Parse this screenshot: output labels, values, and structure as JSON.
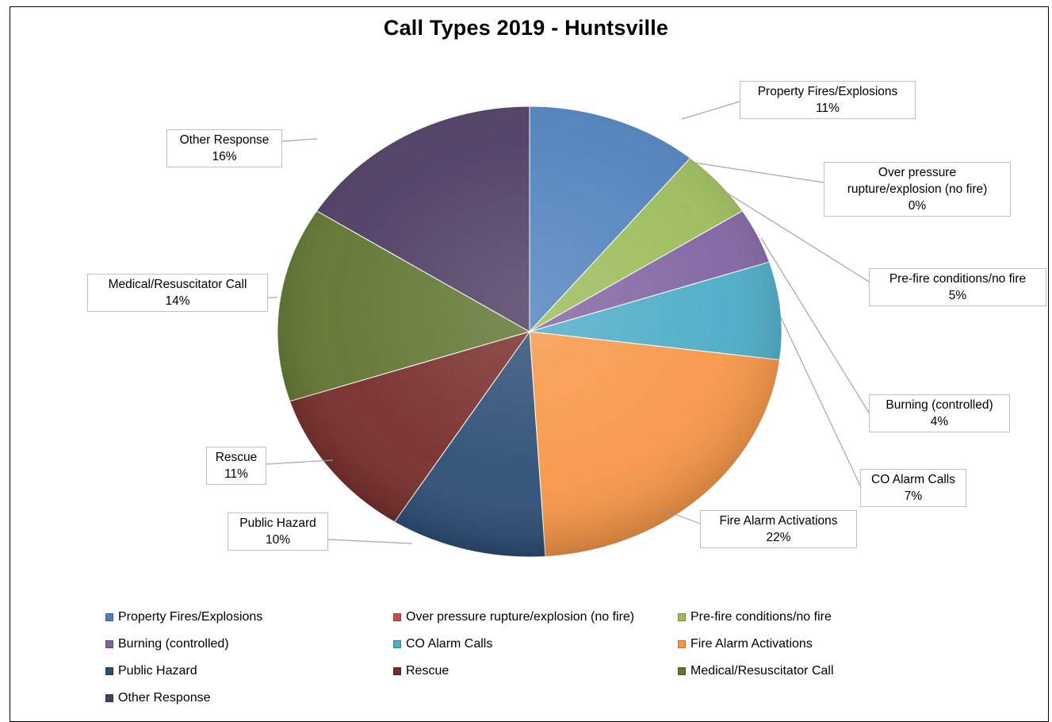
{
  "chart_data": {
    "type": "pie",
    "title": "Call Types 2019 - Huntsville",
    "slices": [
      {
        "label": "Property Fires/Explosions",
        "value": 11,
        "value_label": "11%",
        "color": "#4f81bd"
      },
      {
        "label": "Over pressure rupture/explosion (no fire)",
        "value": 0,
        "value_label": "0%",
        "color": "#c0504d",
        "callout_label": "Over pressure rupture/explosion (no fire)"
      },
      {
        "label": "Pre-fire conditions/no fire",
        "value": 5,
        "value_label": "5%",
        "color": "#9bbb59"
      },
      {
        "label": "Burning (controlled)",
        "value": 4,
        "value_label": "4%",
        "color": "#8064a2"
      },
      {
        "label": "CO Alarm Calls",
        "value": 7,
        "value_label": "7%",
        "color": "#4bacc6"
      },
      {
        "label": "Fire Alarm Activations",
        "value": 22,
        "value_label": "22%",
        "color": "#f79646"
      },
      {
        "label": "Public Hazard",
        "value": 10,
        "value_label": "10%",
        "color": "#2c4d75"
      },
      {
        "label": "Rescue",
        "value": 11,
        "value_label": "11%",
        "color": "#772c2a"
      },
      {
        "label": "Medical/Resuscitator Call",
        "value": 14,
        "value_label": "14%",
        "color": "#5f7530"
      },
      {
        "label": "Other Response",
        "value": 16,
        "value_label": "16%",
        "color": "#4d3b62"
      }
    ],
    "legend_position": "bottom"
  },
  "callouts": {
    "property_fires": {
      "line1": "Property Fires/Explosions",
      "line2": "11%"
    },
    "over_pressure": {
      "line1": "Over pressure",
      "line2": "rupture/explosion (no fire)",
      "line3": "0%"
    },
    "pre_fire": {
      "line1": "Pre-fire conditions/no fire",
      "line2": "5%"
    },
    "burning": {
      "line1": "Burning (controlled)",
      "line2": "4%"
    },
    "co_alarm": {
      "line1": "CO Alarm Calls",
      "line2": "7%"
    },
    "fire_alarm": {
      "line1": "Fire Alarm Activations",
      "line2": "22%"
    },
    "public_hazard": {
      "line1": "Public Hazard",
      "line2": "10%"
    },
    "rescue": {
      "line1": "Rescue",
      "line2": "11%"
    },
    "medical": {
      "line1": "Medical/Resuscitator Call",
      "line2": "14%"
    },
    "other": {
      "line1": "Other Response",
      "line2": "16%"
    }
  },
  "legend": [
    {
      "label": "Property Fires/Explosions",
      "color": "#4f81bd"
    },
    {
      "label": "Over pressure rupture/explosion (no fire)",
      "color": "#c0504d"
    },
    {
      "label": "Pre-fire conditions/no fire",
      "color": "#9bbb59"
    },
    {
      "label": "Burning (controlled)",
      "color": "#8064a2"
    },
    {
      "label": "CO Alarm Calls",
      "color": "#4bacc6"
    },
    {
      "label": "Fire Alarm Activations",
      "color": "#f79646"
    },
    {
      "label": "Public Hazard",
      "color": "#2c4d75"
    },
    {
      "label": "Rescue",
      "color": "#772c2a"
    },
    {
      "label": "Medical/Resuscitator Call",
      "color": "#5f7530"
    },
    {
      "label": "Other Response",
      "color": "#4d3b62"
    }
  ]
}
